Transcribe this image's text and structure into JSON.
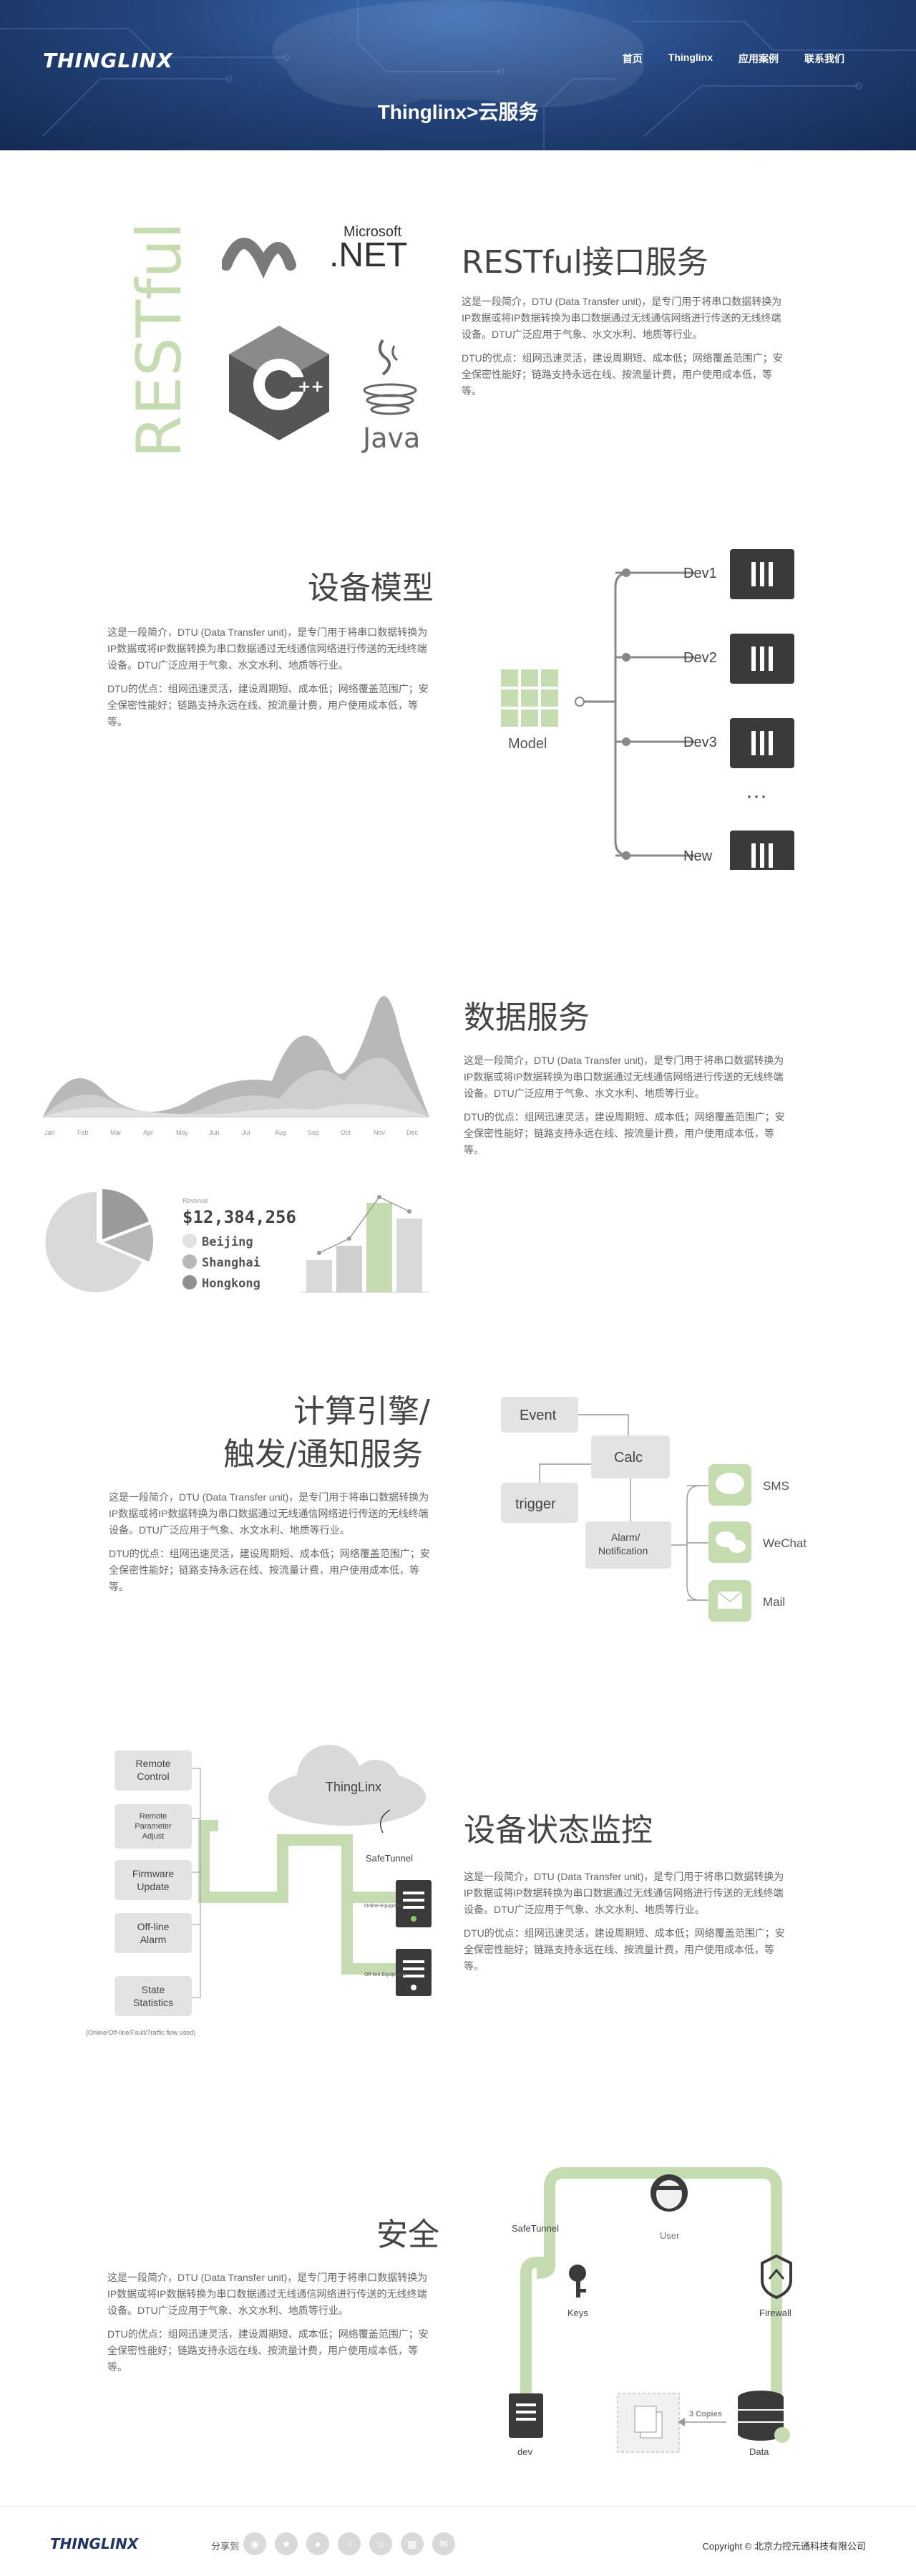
{
  "header": {
    "logo": "THINGLINX",
    "nav": [
      "首页",
      "Thinglinx",
      "应用案例",
      "联系我们"
    ],
    "title": "Thinglinx>云服务"
  },
  "intro_para": [
    "这是一段简介，DTU (Data Transfer unit)，是专门用于将串口数据转换为IP数据或将IP数据转换为串口数据通过无线通信网络进行传送的无线终端设备。DTU广泛应用于气象、水文水利、地质等行业。",
    "DTU的优点：组网迅速灵活，建设周期短、成本低；网络覆盖范围广；安全保密性能好；链路支持永远在线、按流量计费，用户使用成本低，等等。"
  ],
  "sections": {
    "restful": {
      "title": "RESTful接口服务",
      "vertical_text": "RESTful",
      "ms_text": "Microsoft",
      "net_text": ".NET",
      "java_text": "Java"
    },
    "device_model": {
      "title": "设备模型",
      "model_label": "Model",
      "devices": [
        "Dev1",
        "Dev2",
        "Dev3",
        "New"
      ],
      "ellipsis": "···"
    },
    "data_service": {
      "title": "数据服务",
      "months": [
        "Jan",
        "Feb",
        "Mar",
        "Apr",
        "May",
        "Jun",
        "Jul",
        "Aug",
        "Sep",
        "Oct",
        "Nov",
        "Dec"
      ],
      "revenue_label": "Revenue",
      "revenue_value": "$12,384,256",
      "cities": [
        "Beijing",
        "Shanghai",
        "Hongkong"
      ]
    },
    "compute": {
      "title_line1": "计算引擎/",
      "title_line2": "触发/通知服务",
      "event": "Event",
      "trigger": "trigger",
      "calc": "Calc",
      "alarm_line1": "Alarm/",
      "alarm_line2": "Notification",
      "channels": [
        "SMS",
        "WeChat",
        "Mail"
      ]
    },
    "monitor": {
      "title": "设备状态监控",
      "cloud": "ThingLinx",
      "tunnel": "SafeTunnel",
      "equip_online": "Online Equipment",
      "equip_offline": "Off-line Equipment",
      "buttons": [
        [
          "Remote",
          "Control"
        ],
        [
          "Remote",
          "Parameter",
          "Adjust"
        ],
        [
          "Firmware",
          "Update"
        ],
        [
          "Off-line",
          "Alarm"
        ],
        [
          "State",
          "Statistics"
        ]
      ],
      "caption": "(Online/Off-line/Fault/Traffic flow used)"
    },
    "security": {
      "title": "安全",
      "tunnel": "SafeTunnel",
      "user": "User",
      "keys": "Keys",
      "firewall": "Firewall",
      "dev": "dev",
      "data": "Data",
      "copies": "3 Copies"
    }
  },
  "footer": {
    "logo": "THINGLINX",
    "share": "分享到",
    "copyright": "Copyright © 北京力控元通科技有限公司"
  },
  "colors": {
    "accent_green": "#c5dcb0",
    "dark": "#3a3a3a",
    "header_blue": "#24467f"
  }
}
